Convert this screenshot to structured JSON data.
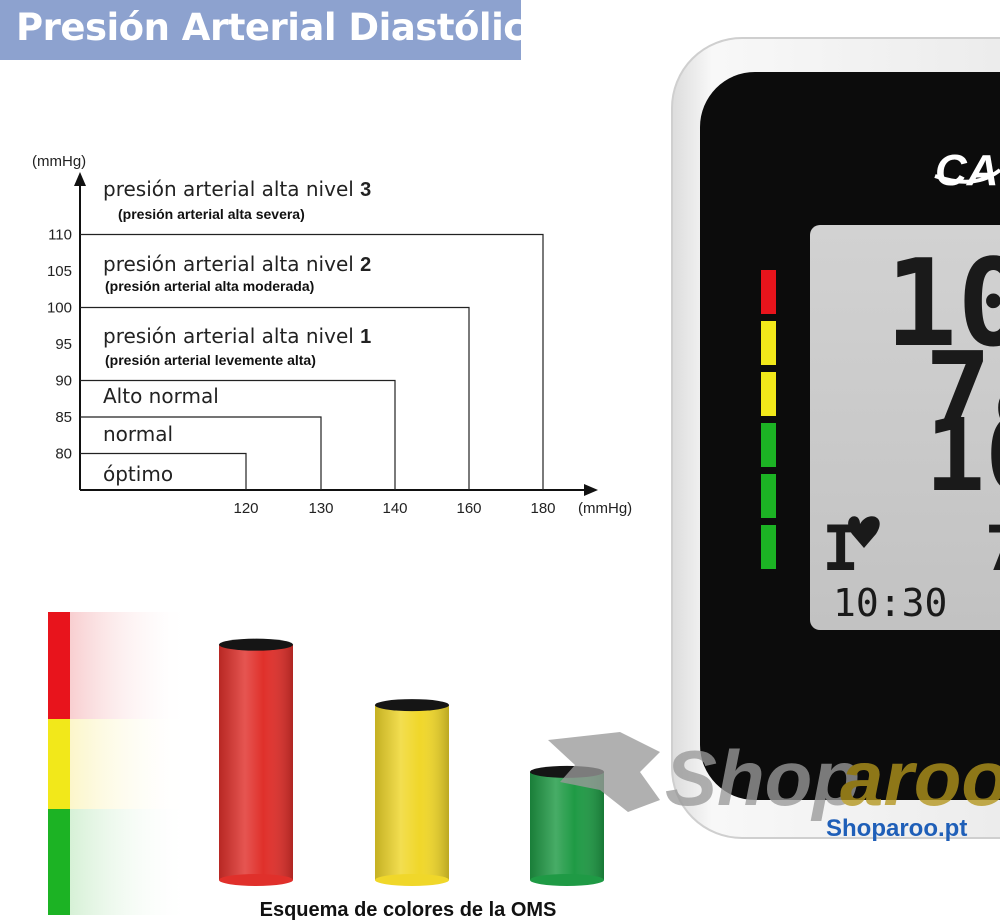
{
  "title": "Presión Arterial Diastólica",
  "chart_data": {
    "type": "diagram",
    "y_unit": "(mmHg)",
    "x_unit": "(mmHg)",
    "y_ticks": [
      80,
      85,
      90,
      95,
      100,
      105,
      110
    ],
    "x_ticks": [
      120,
      130,
      140,
      160,
      180
    ],
    "categories": [
      {
        "label": "óptimo",
        "sublabel": "",
        "level": "",
        "diastolic_max": 80,
        "systolic_max": 120
      },
      {
        "label": "normal",
        "sublabel": "",
        "level": "",
        "diastolic_max": 85,
        "systolic_max": 130
      },
      {
        "label": "Alto normal",
        "sublabel": "",
        "level": "",
        "diastolic_max": 90,
        "systolic_max": 140
      },
      {
        "label": "presión arterial alta nivel ",
        "level": "1",
        "sublabel": "(presión arterial levemente alta)",
        "diastolic_max": 100,
        "systolic_max": 160
      },
      {
        "label": "presión arterial alta nivel ",
        "level": "2",
        "sublabel": "(presión arterial alta moderada)",
        "diastolic_max": 110,
        "systolic_max": 180
      },
      {
        "label": "presión arterial alta nivel ",
        "level": "3",
        "sublabel": "(presión arterial alta severa)",
        "diastolic_max": null,
        "systolic_max": null
      }
    ]
  },
  "color_scheme": {
    "caption": "Esquema de colores de la OMS",
    "strip_colors": [
      "#e8141c",
      "#f2e81a",
      "#1cb324"
    ],
    "cylinders": [
      {
        "color": "#e0302b",
        "level": 0.74
      },
      {
        "color": "#f0d72a",
        "level": 0.55
      },
      {
        "color": "#1f9a45",
        "level": 0.34
      }
    ]
  },
  "device": {
    "brand": "CA",
    "readings": [
      "10",
      "78",
      "10"
    ],
    "time": "10:30",
    "pulse_prefix": "I",
    "pulse_suffix": "7",
    "led_colors": [
      "#e8141c",
      "#f2e81a",
      "#f2e81a",
      "#1cb324",
      "#1cb324",
      "#1cb324"
    ]
  },
  "watermark": {
    "text_left": "Shop",
    "text_right": "aroo",
    "site": "Shoparoo.pt"
  }
}
